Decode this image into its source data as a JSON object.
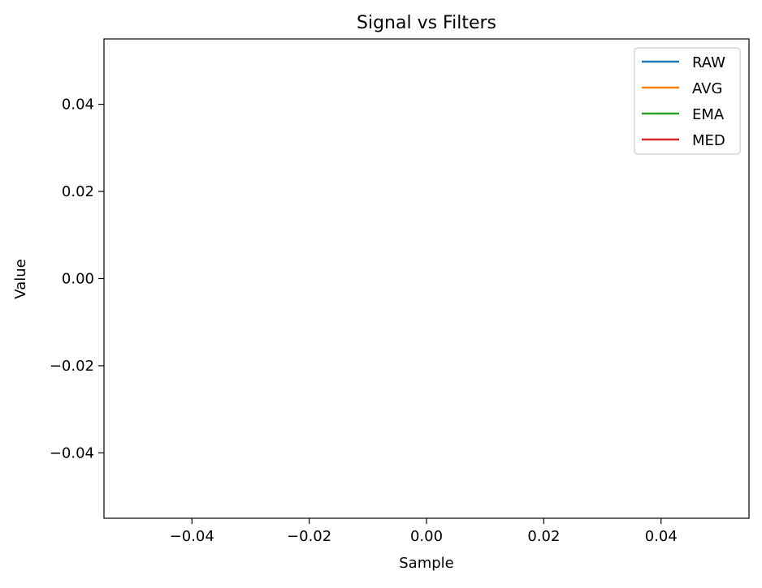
{
  "chart_data": {
    "type": "line",
    "title": "Signal vs Filters",
    "xlabel": "Sample",
    "ylabel": "Value",
    "xlim": [
      -0.055,
      0.055
    ],
    "ylim": [
      -0.055,
      0.055
    ],
    "xticks": [
      -0.04,
      -0.02,
      0.0,
      0.02,
      0.04
    ],
    "yticks": [
      -0.04,
      -0.02,
      0.0,
      0.02,
      0.04
    ],
    "xtick_labels": [
      "−0.04",
      "−0.02",
      "0.00",
      "0.02",
      "0.04"
    ],
    "ytick_labels": [
      "−0.04",
      "−0.02",
      "0.00",
      "0.02",
      "0.04"
    ],
    "grid": false,
    "legend_position": "top-right",
    "series": [
      {
        "name": "RAW",
        "color": "#1f77b4",
        "x": [],
        "y": []
      },
      {
        "name": "AVG",
        "color": "#ff7f0e",
        "x": [],
        "y": []
      },
      {
        "name": "EMA",
        "color": "#2ca02c",
        "x": [],
        "y": []
      },
      {
        "name": "MED",
        "color": "#d62728",
        "x": [],
        "y": []
      }
    ]
  }
}
